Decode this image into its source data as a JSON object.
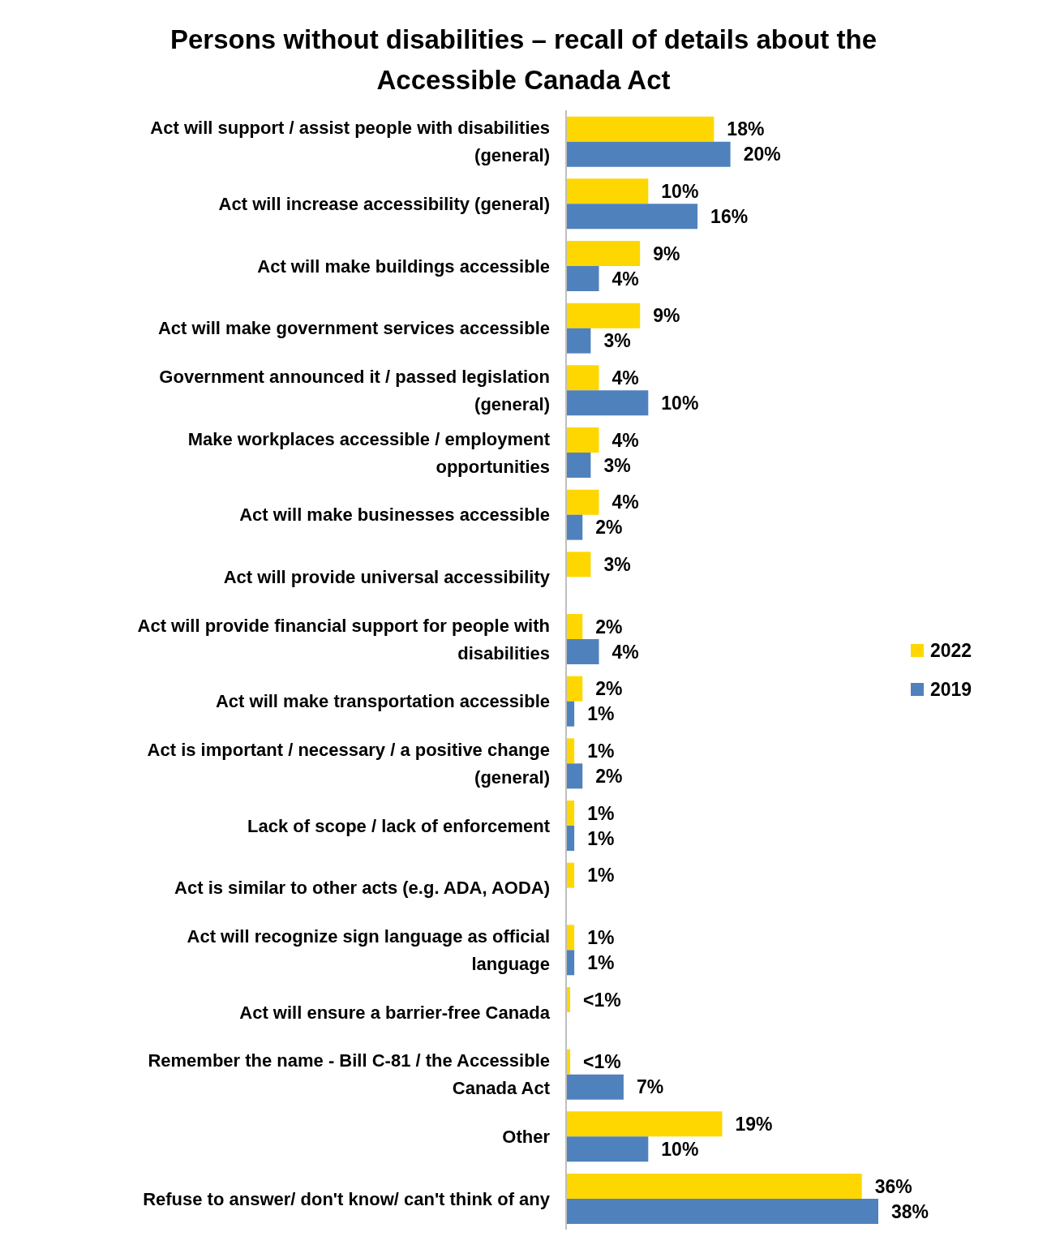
{
  "chart_data": {
    "type": "bar",
    "orientation": "horizontal",
    "title": "Persons without disabilities – recall of details about the Accessible Canada Act",
    "categories": [
      "Act will support / assist people with disabilities (general)",
      "Act will increase accessibility (general)",
      "Act will make buildings accessible",
      "Act will make government services accessible",
      "Government announced it / passed legislation (general)",
      "Make workplaces accessible / employment opportunities",
      "Act will make businesses accessible",
      "Act will provide universal accessibility",
      "Act will provide financial support for people with disabilities",
      "Act will make transportation accessible",
      "Act is important / necessary / a positive change (general)",
      "Lack of scope / lack of enforcement",
      "Act is similar to other acts (e.g. ADA, AODA)",
      "Act will recognize sign language as official language",
      "Act will ensure a barrier-free Canada",
      "Remember the name - Bill C-81 / the Accessible Canada Act",
      "Other",
      "Refuse to answer/ don't know/ can't think of any"
    ],
    "series": [
      {
        "name": "2022",
        "color": "#ffd700",
        "values": [
          18,
          10,
          9,
          9,
          4,
          4,
          4,
          3,
          2,
          2,
          1,
          1,
          1,
          1,
          0.5,
          0.5,
          19,
          36
        ],
        "value_labels": [
          "18%",
          "10%",
          "9%",
          "9%",
          "4%",
          "4%",
          "4%",
          "3%",
          "2%",
          "2%",
          "1%",
          "1%",
          "1%",
          "1%",
          "<1%",
          "<1%",
          "19%",
          "36%"
        ]
      },
      {
        "name": "2019",
        "color": "#4f81bd",
        "values": [
          20,
          16,
          4,
          3,
          10,
          3,
          2,
          null,
          4,
          1,
          2,
          1,
          null,
          1,
          null,
          7,
          10,
          38
        ],
        "value_labels": [
          "20%",
          "16%",
          "4%",
          "3%",
          "10%",
          "3%",
          "2%",
          null,
          "4%",
          "1%",
          "2%",
          "1%",
          null,
          "1%",
          null,
          "7%",
          "10%",
          "38%"
        ]
      }
    ],
    "legend": "right",
    "tick_labels": "y"
  }
}
